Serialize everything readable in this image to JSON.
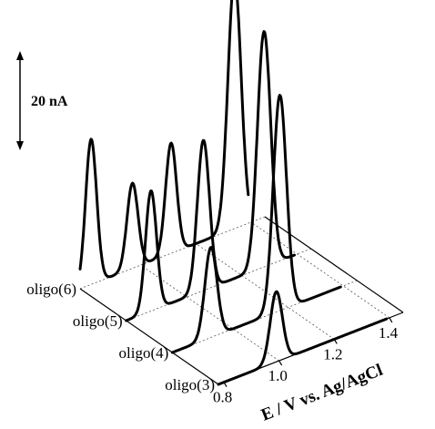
{
  "chart_data": {
    "type": "line",
    "style": "3d-waterfall",
    "xlabel": "E / V vs. Ag/AgCl",
    "x_ticks": [
      0.8,
      1.0,
      1.2,
      1.4
    ],
    "x_tick_labels": [
      "0.8",
      "1.0",
      "1.2",
      "1.4"
    ],
    "xlim": [
      0.78,
      1.45
    ],
    "y_scale_bar": {
      "label": "20 nA",
      "value_nA": 20
    },
    "grid": true,
    "series": [
      {
        "name": "oligo(3)",
        "peaks": [
          {
            "x": 0.99,
            "height_nA": 14,
            "sigma": 0.022
          }
        ]
      },
      {
        "name": "oligo(4)",
        "peaks": [
          {
            "x": 0.92,
            "height_nA": 18,
            "sigma": 0.022
          },
          {
            "x": 1.17,
            "height_nA": 43,
            "sigma": 0.024
          }
        ]
      },
      {
        "name": "oligo(5)",
        "peaks": [
          {
            "x": 0.87,
            "height_nA": 24,
            "sigma": 0.02
          },
          {
            "x": 1.06,
            "height_nA": 30,
            "sigma": 0.022
          },
          {
            "x": 1.28,
            "height_nA": 47,
            "sigma": 0.024
          }
        ]
      },
      {
        "name": "oligo(6)",
        "peaks": [
          {
            "x": 0.82,
            "height_nA": 29,
            "sigma": 0.02
          },
          {
            "x": 0.97,
            "height_nA": 17,
            "sigma": 0.02
          },
          {
            "x": 1.11,
            "height_nA": 22,
            "sigma": 0.02
          },
          {
            "x": 1.34,
            "height_nA": 50,
            "sigma": 0.024
          }
        ]
      }
    ]
  }
}
